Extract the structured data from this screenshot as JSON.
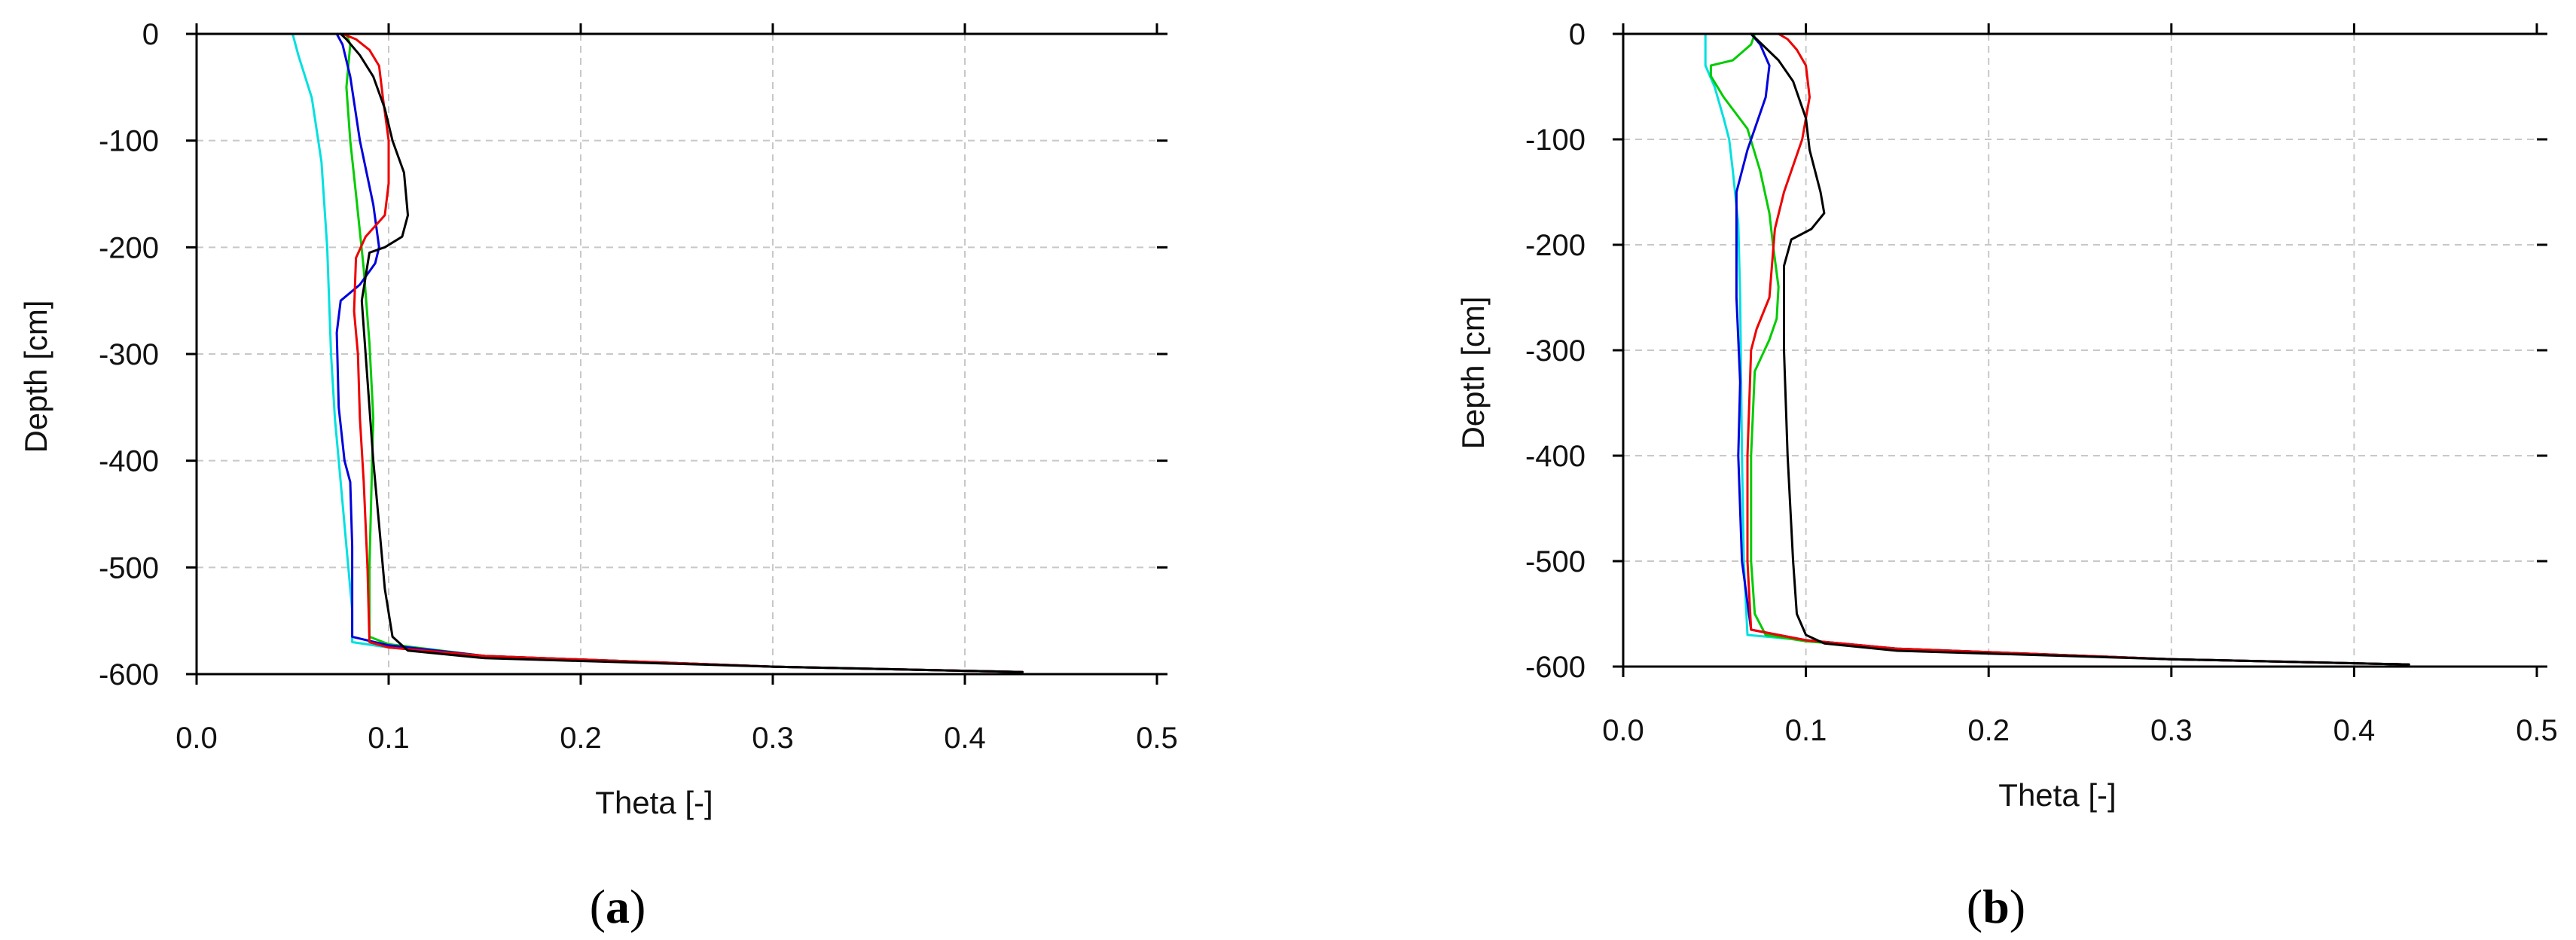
{
  "chart_data": [
    {
      "type": "line",
      "panel_label": "(a)",
      "xlabel": "Theta [-]",
      "ylabel": "Depth [cm]",
      "xlim": [
        0,
        0.5
      ],
      "ylim": [
        -600,
        0
      ],
      "xticks": [
        "0.0",
        "0.1",
        "0.2",
        "0.3",
        "0.4",
        "0.5"
      ],
      "yticks": [
        "0",
        "-100",
        "-200",
        "-300",
        "-400",
        "-500",
        "-600"
      ],
      "grid": true,
      "series": [
        {
          "color": "#00e0e0",
          "x": [
            0.05,
            0.053,
            0.06,
            0.065,
            0.068,
            0.07,
            0.072,
            0.075,
            0.078,
            0.081,
            0.081,
            0.1,
            0.15,
            0.3,
            0.43
          ],
          "y": [
            0,
            -20,
            -60,
            -120,
            -200,
            -300,
            -360,
            -420,
            -480,
            -540,
            -570,
            -575,
            -583,
            -593,
            -598
          ]
        },
        {
          "color": "#00cc00",
          "x": [
            0.078,
            0.08,
            0.078,
            0.08,
            0.083,
            0.087,
            0.09,
            0.092,
            0.091,
            0.09,
            0.09,
            0.1,
            0.15,
            0.3,
            0.43
          ],
          "y": [
            0,
            -10,
            -50,
            -100,
            -150,
            -220,
            -290,
            -360,
            -430,
            -500,
            -565,
            -572,
            -583,
            -593,
            -598
          ]
        },
        {
          "color": "#0000dd",
          "x": [
            0.073,
            0.076,
            0.08,
            0.085,
            0.092,
            0.095,
            0.093,
            0.085,
            0.075,
            0.073,
            0.074,
            0.077,
            0.08,
            0.081,
            0.081,
            0.1,
            0.15,
            0.3,
            0.43
          ],
          "y": [
            0,
            -10,
            -40,
            -100,
            -160,
            -200,
            -215,
            -235,
            -250,
            -280,
            -350,
            -400,
            -420,
            -480,
            -565,
            -573,
            -583,
            -593,
            -598
          ]
        },
        {
          "color": "#ee0000",
          "x": [
            0.076,
            0.083,
            0.09,
            0.095,
            0.097,
            0.1,
            0.1,
            0.098,
            0.088,
            0.083,
            0.082,
            0.084,
            0.085,
            0.087,
            0.089,
            0.09,
            0.1,
            0.15,
            0.3,
            0.43
          ],
          "y": [
            0,
            -5,
            -15,
            -30,
            -60,
            -100,
            -140,
            -170,
            -190,
            -210,
            -260,
            -300,
            -360,
            -420,
            -500,
            -570,
            -575,
            -583,
            -593,
            -598
          ]
        },
        {
          "color": "#000000",
          "x": [
            0.075,
            0.078,
            0.085,
            0.092,
            0.098,
            0.102,
            0.108,
            0.11,
            0.107,
            0.098,
            0.09,
            0.086,
            0.088,
            0.092,
            0.095,
            0.098,
            0.102,
            0.11,
            0.15,
            0.3,
            0.43
          ],
          "y": [
            0,
            -5,
            -20,
            -40,
            -70,
            -100,
            -130,
            -170,
            -190,
            -200,
            -205,
            -250,
            -300,
            -400,
            -460,
            -520,
            -565,
            -578,
            -585,
            -593,
            -598
          ]
        }
      ]
    },
    {
      "type": "line",
      "panel_label": "(b)",
      "xlabel": "Theta [-]",
      "ylabel": "Depth [cm]",
      "xlim": [
        0,
        0.5
      ],
      "ylim": [
        -600,
        0
      ],
      "xticks": [
        "0.0",
        "0.1",
        "0.2",
        "0.3",
        "0.4",
        "0.5"
      ],
      "yticks": [
        "0",
        "-100",
        "-200",
        "-300",
        "-400",
        "-500",
        "-600"
      ],
      "grid": true,
      "series": [
        {
          "color": "#00e0e0",
          "x": [
            0.045,
            0.045,
            0.05,
            0.055,
            0.058,
            0.06,
            0.063,
            0.064,
            0.065,
            0.066,
            0.068,
            0.1,
            0.15,
            0.3,
            0.43
          ],
          "y": [
            0,
            -30,
            -50,
            -80,
            -100,
            -130,
            -180,
            -250,
            -400,
            -500,
            -570,
            -575,
            -583,
            -593,
            -598
          ]
        },
        {
          "color": "#00cc00",
          "x": [
            0.072,
            0.07,
            0.06,
            0.048,
            0.048,
            0.055,
            0.068,
            0.075,
            0.08,
            0.082,
            0.085,
            0.084,
            0.08,
            0.072,
            0.07,
            0.07,
            0.072,
            0.078,
            0.1,
            0.15,
            0.3,
            0.43
          ],
          "y": [
            0,
            -10,
            -25,
            -30,
            -40,
            -60,
            -90,
            -130,
            -170,
            -200,
            -240,
            -270,
            -290,
            -320,
            -400,
            -500,
            -550,
            -570,
            -576,
            -583,
            -593,
            -598
          ]
        },
        {
          "color": "#0000dd",
          "x": [
            0.07,
            0.075,
            0.08,
            0.078,
            0.072,
            0.068,
            0.065,
            0.062,
            0.062,
            0.064,
            0.063,
            0.065,
            0.07,
            0.1,
            0.15,
            0.3,
            0.43
          ],
          "y": [
            0,
            -10,
            -30,
            -60,
            -90,
            -110,
            -130,
            -150,
            -250,
            -330,
            -400,
            -500,
            -565,
            -575,
            -583,
            -593,
            -598
          ]
        },
        {
          "color": "#ee0000",
          "x": [
            0.085,
            0.09,
            0.095,
            0.1,
            0.102,
            0.098,
            0.088,
            0.083,
            0.08,
            0.073,
            0.07,
            0.068,
            0.068,
            0.07,
            0.1,
            0.15,
            0.3,
            0.43
          ],
          "y": [
            0,
            -5,
            -15,
            -30,
            -60,
            -100,
            -150,
            -185,
            -250,
            -280,
            -300,
            -400,
            -500,
            -565,
            -575,
            -583,
            -593,
            -598
          ]
        },
        {
          "color": "#000000",
          "x": [
            0.07,
            0.076,
            0.085,
            0.093,
            0.1,
            0.102,
            0.108,
            0.11,
            0.103,
            0.092,
            0.088,
            0.088,
            0.09,
            0.093,
            0.095,
            0.1,
            0.11,
            0.15,
            0.3,
            0.43
          ],
          "y": [
            0,
            -10,
            -25,
            -45,
            -80,
            -110,
            -150,
            -170,
            -185,
            -195,
            -220,
            -300,
            -400,
            -500,
            -550,
            -570,
            -578,
            -585,
            -593,
            -598
          ]
        }
      ]
    }
  ]
}
